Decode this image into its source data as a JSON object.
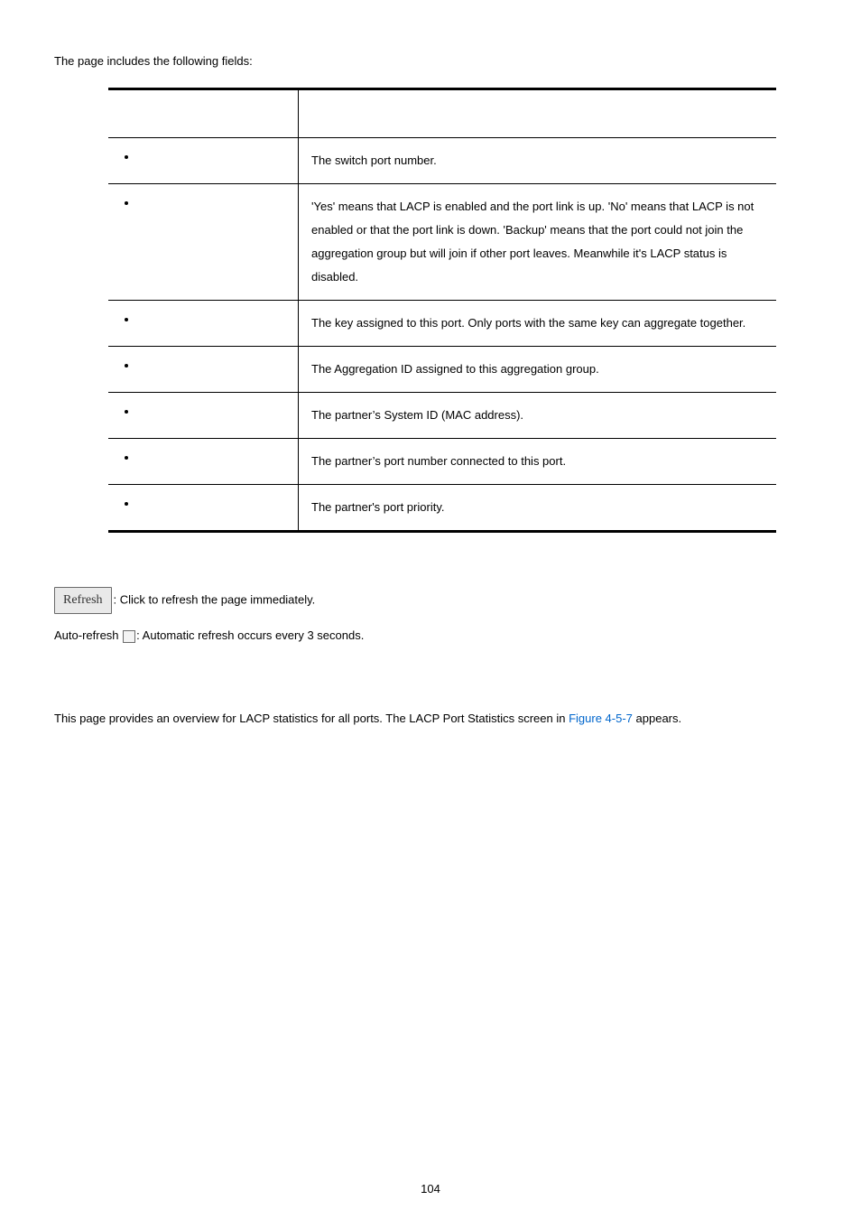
{
  "intro_text": "The page includes the following fields:",
  "table": {
    "header": {
      "object": "",
      "description": ""
    },
    "rows": [
      {
        "object": "",
        "description": "The switch port number."
      },
      {
        "object": "",
        "description": "'Yes' means that LACP is enabled and the port link is up. 'No' means that LACP is not enabled or that the port link is down. 'Backup' means that the port could not join the aggregation group but will join if other port leaves. Meanwhile it's LACP status is disabled."
      },
      {
        "object": "",
        "description": "The key assigned to this port.   Only ports with the same key can aggregate together."
      },
      {
        "object": "",
        "description": "The Aggregation ID assigned to this aggregation group."
      },
      {
        "object": "",
        "description": "The partner’s System ID (MAC address)."
      },
      {
        "object": "",
        "description": "The partner’s port number connected to this port."
      },
      {
        "object": "",
        "description": "The partner's port priority."
      }
    ]
  },
  "buttons_heading": "",
  "refresh": {
    "button_label": "Refresh",
    "text": ": Click to refresh the page immediately."
  },
  "auto_refresh": {
    "prefix": "Auto-refresh ",
    "suffix": ": Automatic refresh occurs every 3 seconds."
  },
  "section_heading": "",
  "overview": {
    "before_ref": "This page provides an overview for LACP statistics for all ports. The LACP Port Statistics screen in ",
    "ref": "Figure 4-5-7",
    "after_ref": " appears."
  },
  "page_number": "104",
  "colors": {
    "text": "#000000",
    "link": "#0066cc",
    "button_bg": "#e9e9e9",
    "button_border": "#6a6a6a",
    "checkbox_border": "#6b6b6b",
    "checkbox_bg": "#f4f4f4",
    "background": "#ffffff"
  },
  "typography": {
    "body_font": "Arial",
    "button_font": "Times New Roman",
    "body_size_pt": 10
  }
}
